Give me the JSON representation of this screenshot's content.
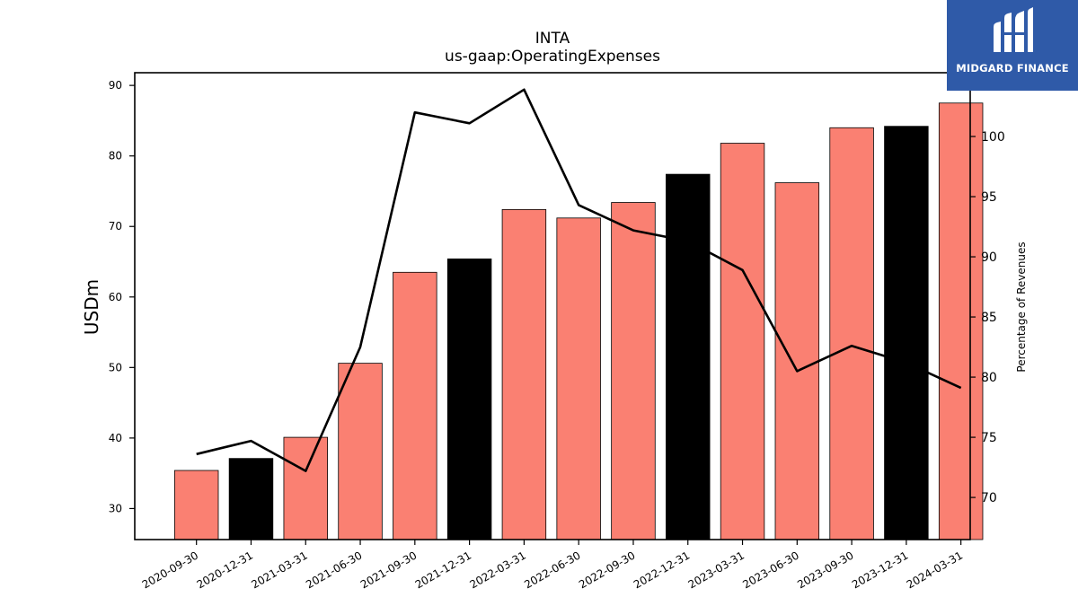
{
  "brand": {
    "name": "MIDGARD FINANCE",
    "icon": "mf-logo-icon",
    "background": "#2f5aa8"
  },
  "colors": {
    "bar_default": "#fa8072",
    "bar_highlight": "#000000",
    "line": "#000000"
  },
  "chart_data": {
    "type": "bar",
    "title": "INTA",
    "subtitle": "us-gaap:OperatingExpenses",
    "ylabel": "USDm",
    "y2label": "Percentage of Revenues",
    "ylim": [
      25.6,
      91.8
    ],
    "y2lim": [
      66.5,
      105.3
    ],
    "yticks": [
      30,
      40,
      50,
      60,
      70,
      80,
      90
    ],
    "y2ticks": [
      70,
      75,
      80,
      85,
      90,
      95,
      100
    ],
    "categories": [
      "2020-09-30",
      "2020-12-31",
      "2021-03-31",
      "2021-06-30",
      "2021-09-30",
      "2021-12-31",
      "2022-03-31",
      "2022-06-30",
      "2022-09-30",
      "2022-12-31",
      "2023-03-31",
      "2023-06-30",
      "2023-09-30",
      "2023-12-31",
      "2024-03-31"
    ],
    "series": [
      {
        "kind": "bar",
        "axis": "left",
        "values": [
          35.4,
          37.1,
          40.1,
          50.6,
          63.5,
          65.4,
          72.4,
          71.2,
          73.4,
          77.4,
          81.8,
          76.2,
          84.0,
          84.2,
          87.5
        ],
        "highlight": [
          false,
          true,
          false,
          false,
          false,
          true,
          false,
          false,
          false,
          true,
          false,
          false,
          false,
          true,
          false
        ]
      },
      {
        "kind": "line",
        "axis": "right",
        "values": [
          73.6,
          74.7,
          72.2,
          82.5,
          102.0,
          101.1,
          103.9,
          94.3,
          92.2,
          91.3,
          88.9,
          80.5,
          82.6,
          81.2,
          79.1
        ]
      }
    ],
    "grid": false,
    "legend": "none"
  }
}
